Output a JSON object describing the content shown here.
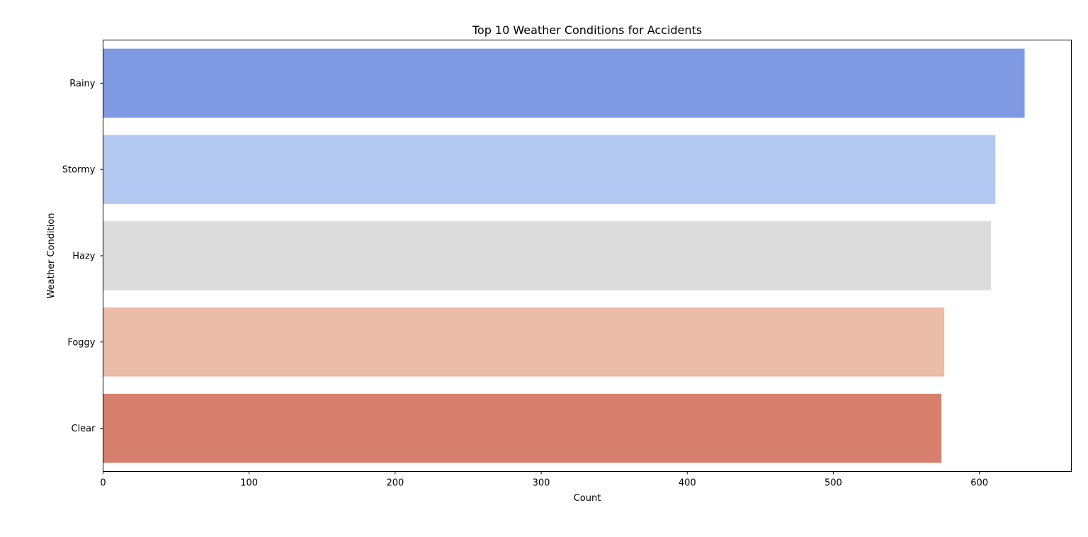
{
  "chart_data": {
    "type": "bar",
    "orientation": "horizontal",
    "title": "Top 10 Weather Conditions for Accidents",
    "xlabel": "Count",
    "ylabel": "Weather Condition",
    "categories": [
      "Rainy",
      "Stormy",
      "Hazy",
      "Foggy",
      "Clear"
    ],
    "values": [
      631,
      611,
      608,
      576,
      574
    ],
    "colors": [
      "#7f9ae3",
      "#b4c9f2",
      "#dcdcdc",
      "#ebbca8",
      "#d77f6d"
    ],
    "xlim": [
      0,
      663
    ],
    "xticks": [
      0,
      100,
      200,
      300,
      400,
      500,
      600
    ],
    "grid": false,
    "legend": "none"
  }
}
